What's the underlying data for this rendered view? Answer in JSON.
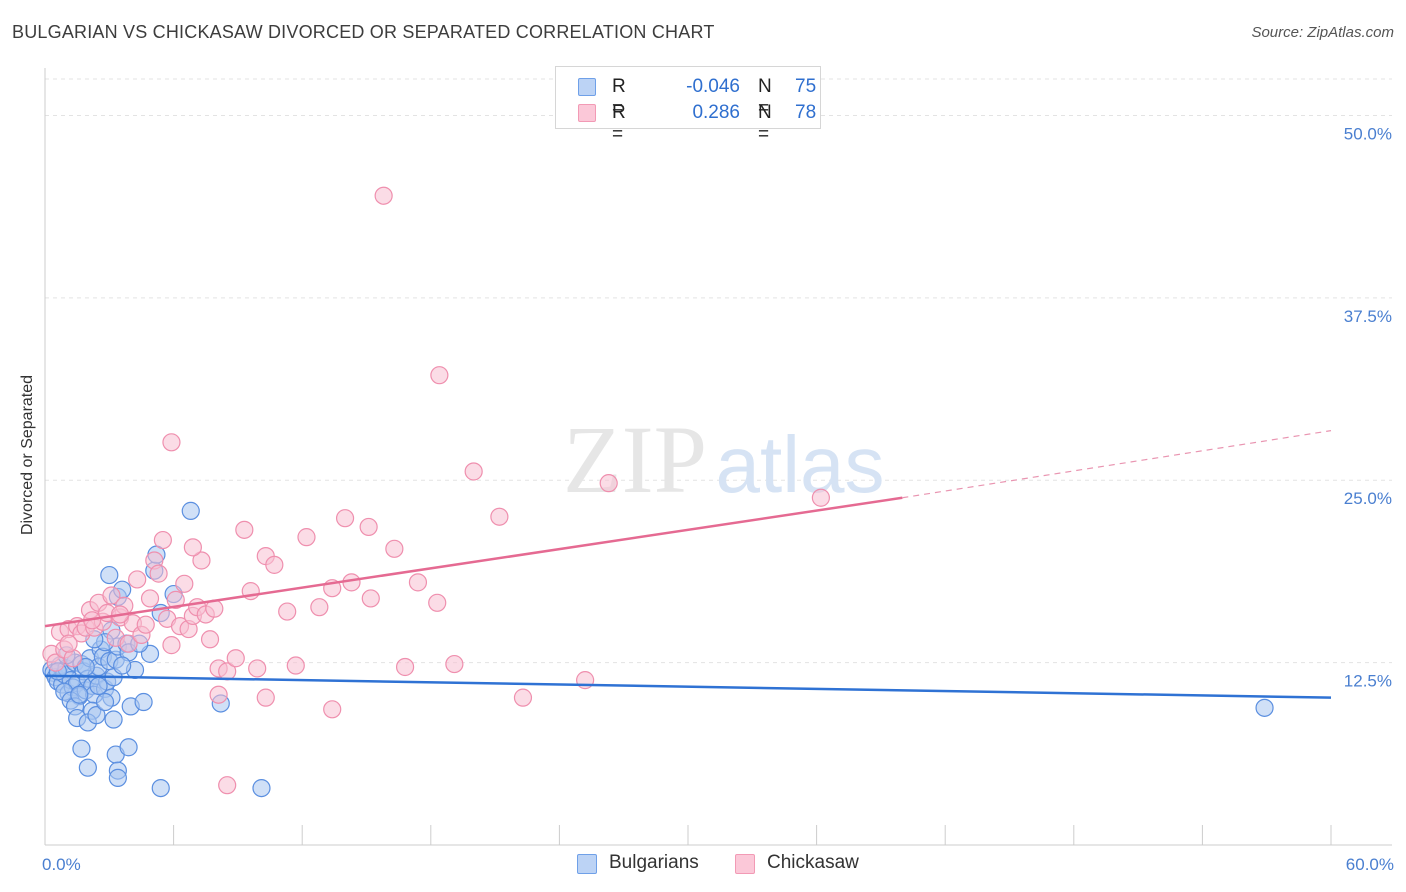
{
  "header": {
    "title": "BULGARIAN VS CHICKASAW DIVORCED OR SEPARATED CORRELATION CHART",
    "source": "Source: ZipAtlas.com"
  },
  "watermark": {
    "zip": "ZIP",
    "atlas": "atlas"
  },
  "legend": {
    "r_label": "R =",
    "n_label": "N =",
    "rows": [
      {
        "r": "-0.046",
        "n": "75",
        "color": "#6fa0e8",
        "fill": "#bcd3f5"
      },
      {
        "r": "0.286",
        "n": "78",
        "color": "#f29ab5",
        "fill": "#fbc8d8"
      }
    ]
  },
  "bottom_legend": [
    "Bulgarians",
    "Chickasaw"
  ],
  "chart_data": {
    "type": "scatter",
    "title": "BULGARIAN VS CHICKASAW DIVORCED OR SEPARATED CORRELATION CHART",
    "xlabel": "",
    "ylabel": "Divorced or Separated",
    "xlim": [
      0,
      60
    ],
    "ylim": [
      0,
      52.5
    ],
    "x_tick_labels": [
      "0.0%",
      "60.0%"
    ],
    "y_ticks": [
      12.5,
      25.0,
      37.5,
      50.0
    ],
    "y_tick_labels": [
      "12.5%",
      "25.0%",
      "37.5%",
      "50.0%"
    ],
    "grid": "horizontal dashed",
    "legend_position": "top-center",
    "series": [
      {
        "name": "Bulgarians",
        "color": "#5b8fe0",
        "fill": "#a9c6f1",
        "trend": {
          "x": [
            0,
            60
          ],
          "y": [
            11.6,
            10.1
          ],
          "style": "solid"
        },
        "points": [
          [
            0.3,
            12.0
          ],
          [
            0.4,
            11.8
          ],
          [
            0.5,
            11.5
          ],
          [
            0.6,
            11.2
          ],
          [
            0.7,
            12.3
          ],
          [
            0.8,
            11.0
          ],
          [
            0.9,
            11.7
          ],
          [
            1.0,
            12.1
          ],
          [
            1.1,
            10.4
          ],
          [
            1.2,
            11.3
          ],
          [
            1.3,
            10.8
          ],
          [
            1.4,
            12.5
          ],
          [
            1.5,
            11.1
          ],
          [
            1.6,
            10.2
          ],
          [
            1.7,
            12.4
          ],
          [
            1.8,
            11.9
          ],
          [
            1.9,
            10.6
          ],
          [
            2.0,
            11.4
          ],
          [
            2.1,
            12.8
          ],
          [
            2.2,
            10.9
          ],
          [
            2.3,
            10.3
          ],
          [
            2.4,
            11.6
          ],
          [
            2.5,
            12.2
          ],
          [
            2.6,
            13.4
          ],
          [
            2.7,
            12.9
          ],
          [
            2.8,
            10.7
          ],
          [
            2.9,
            11.2
          ],
          [
            3.0,
            12.6
          ],
          [
            3.1,
            10.1
          ],
          [
            3.2,
            11.5
          ],
          [
            3.3,
            12.7
          ],
          [
            3.4,
            13.6
          ],
          [
            0.6,
            11.9
          ],
          [
            0.9,
            10.5
          ],
          [
            1.2,
            9.9
          ],
          [
            1.4,
            9.5
          ],
          [
            1.6,
            10.3
          ],
          [
            1.9,
            12.2
          ],
          [
            2.2,
            9.2
          ],
          [
            2.5,
            10.9
          ],
          [
            1.5,
            8.7
          ],
          [
            2.0,
            8.4
          ],
          [
            2.4,
            8.9
          ],
          [
            2.8,
            9.8
          ],
          [
            3.2,
            8.6
          ],
          [
            3.0,
            18.5
          ],
          [
            3.4,
            17.0
          ],
          [
            3.6,
            17.5
          ],
          [
            3.8,
            13.8
          ],
          [
            3.9,
            13.2
          ],
          [
            4.0,
            9.5
          ],
          [
            4.2,
            12.0
          ],
          [
            4.6,
            9.8
          ],
          [
            4.9,
            13.1
          ],
          [
            5.1,
            18.8
          ],
          [
            5.2,
            19.9
          ],
          [
            5.4,
            15.9
          ],
          [
            6.0,
            17.2
          ],
          [
            6.8,
            22.9
          ],
          [
            8.2,
            9.7
          ],
          [
            1.7,
            6.6
          ],
          [
            2.0,
            5.3
          ],
          [
            3.3,
            6.2
          ],
          [
            3.4,
            5.1
          ],
          [
            3.4,
            4.6
          ],
          [
            3.9,
            6.7
          ],
          [
            5.4,
            3.9
          ],
          [
            10.1,
            3.9
          ],
          [
            3.1,
            14.7
          ],
          [
            2.8,
            13.9
          ],
          [
            4.4,
            13.8
          ],
          [
            3.6,
            12.3
          ],
          [
            2.3,
            14.1
          ],
          [
            1.0,
            13.0
          ],
          [
            56.9,
            9.4
          ]
        ]
      },
      {
        "name": "Chickasaw",
        "color": "#ef8fae",
        "fill": "#f8bfd1",
        "trend": {
          "x": [
            0,
            40
          ],
          "y": [
            15.0,
            23.8
          ],
          "style": "solid",
          "extended_x": [
            40,
            60
          ],
          "extended_y": [
            23.8,
            28.4
          ],
          "extended_style": "dashed"
        },
        "points": [
          [
            0.3,
            13.1
          ],
          [
            0.5,
            12.5
          ],
          [
            0.7,
            14.6
          ],
          [
            0.9,
            13.4
          ],
          [
            1.1,
            14.8
          ],
          [
            1.3,
            12.8
          ],
          [
            1.5,
            15.0
          ],
          [
            1.7,
            14.5
          ],
          [
            1.9,
            14.9
          ],
          [
            2.1,
            16.1
          ],
          [
            2.3,
            14.9
          ],
          [
            2.5,
            16.6
          ],
          [
            2.7,
            15.3
          ],
          [
            2.9,
            15.9
          ],
          [
            3.1,
            17.1
          ],
          [
            3.3,
            14.2
          ],
          [
            3.5,
            15.6
          ],
          [
            3.7,
            16.4
          ],
          [
            3.9,
            13.8
          ],
          [
            4.1,
            15.2
          ],
          [
            4.3,
            18.2
          ],
          [
            4.5,
            14.4
          ],
          [
            4.7,
            15.1
          ],
          [
            4.9,
            16.9
          ],
          [
            5.1,
            19.5
          ],
          [
            5.3,
            18.6
          ],
          [
            5.5,
            20.9
          ],
          [
            5.7,
            15.5
          ],
          [
            5.9,
            13.7
          ],
          [
            6.1,
            16.8
          ],
          [
            6.3,
            15.0
          ],
          [
            6.5,
            17.9
          ],
          [
            6.7,
            14.8
          ],
          [
            6.9,
            15.7
          ],
          [
            7.1,
            16.3
          ],
          [
            7.3,
            19.5
          ],
          [
            7.5,
            15.8
          ],
          [
            7.7,
            14.1
          ],
          [
            7.9,
            16.2
          ],
          [
            8.1,
            12.1
          ],
          [
            8.5,
            11.9
          ],
          [
            8.9,
            12.8
          ],
          [
            9.3,
            21.6
          ],
          [
            9.6,
            17.4
          ],
          [
            9.9,
            12.1
          ],
          [
            10.3,
            19.8
          ],
          [
            10.7,
            19.2
          ],
          [
            11.3,
            16.0
          ],
          [
            11.7,
            12.3
          ],
          [
            12.2,
            21.1
          ],
          [
            12.8,
            16.3
          ],
          [
            13.4,
            17.6
          ],
          [
            14.0,
            22.4
          ],
          [
            14.3,
            18.0
          ],
          [
            15.1,
            21.8
          ],
          [
            15.2,
            16.9
          ],
          [
            16.3,
            20.3
          ],
          [
            16.8,
            12.2
          ],
          [
            17.4,
            18.0
          ],
          [
            18.3,
            16.6
          ],
          [
            19.1,
            12.4
          ],
          [
            21.2,
            22.5
          ],
          [
            22.3,
            10.1
          ],
          [
            25.2,
            11.3
          ],
          [
            26.3,
            24.8
          ],
          [
            36.2,
            23.8
          ],
          [
            15.8,
            44.5
          ],
          [
            18.4,
            32.2
          ],
          [
            20.0,
            25.6
          ],
          [
            5.9,
            27.6
          ],
          [
            6.9,
            20.4
          ],
          [
            8.1,
            10.3
          ],
          [
            8.5,
            4.1
          ],
          [
            10.3,
            10.1
          ],
          [
            13.4,
            9.3
          ],
          [
            2.2,
            15.4
          ],
          [
            3.5,
            15.8
          ],
          [
            1.1,
            13.8
          ]
        ]
      }
    ]
  }
}
